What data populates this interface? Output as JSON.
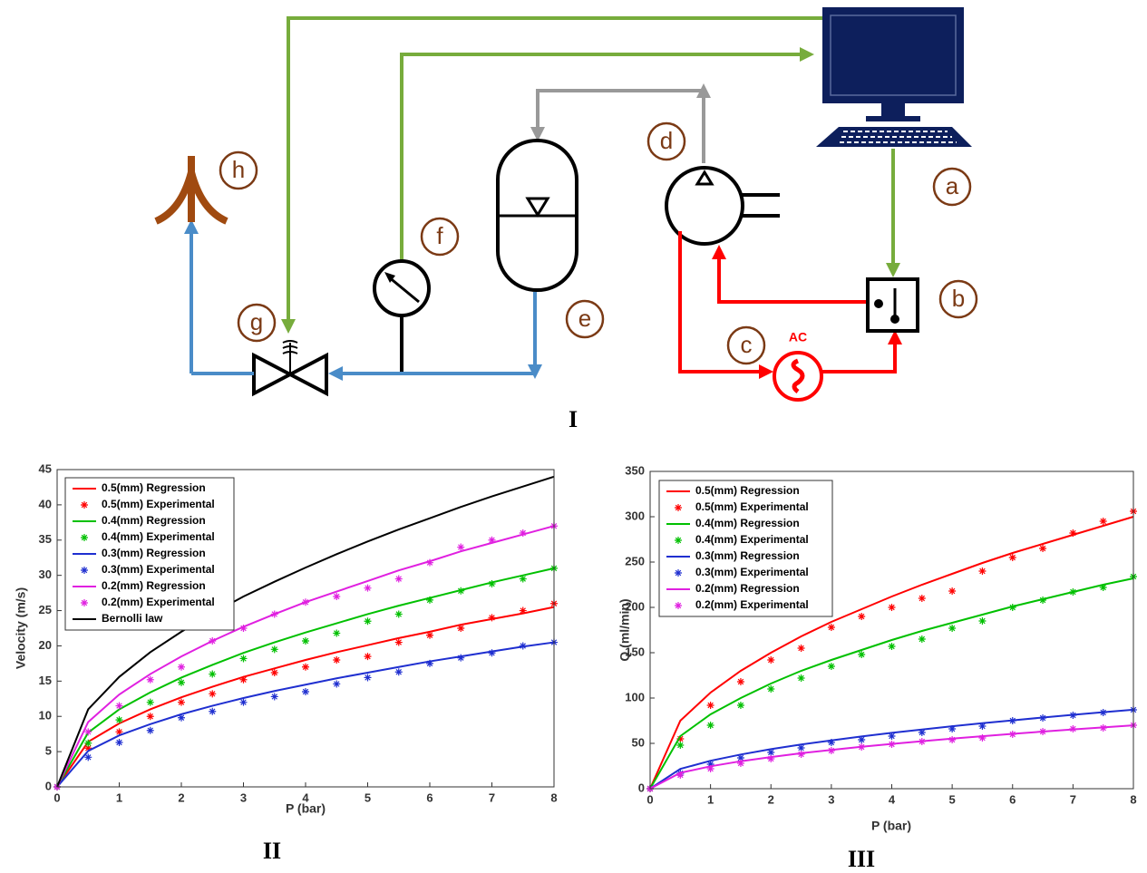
{
  "diagram": {
    "labels": [
      "a",
      "b",
      "c",
      "d",
      "e",
      "f",
      "g",
      "h"
    ],
    "source": "AC",
    "panel": "I"
  },
  "chart_data": [
    {
      "type": "line",
      "panel": "II",
      "x_label": "P (bar)",
      "y_label": "Velocity (m/s)",
      "x": [
        0,
        0.5,
        1,
        1.5,
        2,
        2.5,
        3,
        3.5,
        4,
        4.5,
        5,
        5.5,
        6,
        6.5,
        7,
        7.5,
        8
      ],
      "xlim": [
        0,
        8
      ],
      "ylim": [
        0,
        45
      ],
      "xticks": [
        0,
        1,
        2,
        3,
        4,
        5,
        6,
        7,
        8
      ],
      "yticks": [
        0,
        5,
        10,
        15,
        20,
        25,
        30,
        35,
        40,
        45
      ],
      "legend": "upper left",
      "series": [
        {
          "name": "0.5(mm) Regression",
          "color": "#ff0000",
          "style": "line",
          "values": [
            0,
            6.4,
            9.0,
            11.0,
            12.7,
            14.2,
            15.6,
            16.8,
            18.0,
            19.1,
            20.1,
            21.1,
            22.0,
            23.0,
            23.8,
            24.6,
            25.5
          ]
        },
        {
          "name": "0.5(mm) Experimental",
          "color": "#ff0000",
          "style": "markers",
          "values": [
            0,
            5.5,
            7.8,
            10,
            12,
            13.2,
            15.2,
            16.2,
            17,
            18,
            18.5,
            20.5,
            21.5,
            22.5,
            24,
            25,
            26
          ]
        },
        {
          "name": "0.4(mm) Regression",
          "color": "#00c000",
          "style": "line",
          "values": [
            0,
            7.7,
            11.0,
            13.4,
            15.5,
            17.3,
            19.0,
            20.5,
            21.9,
            23.2,
            24.5,
            25.7,
            26.8,
            27.9,
            29.0,
            30.0,
            31.0
          ]
        },
        {
          "name": "0.4(mm) Experimental",
          "color": "#00c000",
          "style": "markers",
          "values": [
            0,
            6.2,
            9.5,
            12,
            14.8,
            16,
            18.2,
            19.5,
            20.7,
            21.8,
            23.5,
            24.5,
            26.5,
            27.8,
            28.8,
            29.5,
            31
          ]
        },
        {
          "name": "0.3(mm) Regression",
          "color": "#1f2fd0",
          "style": "line",
          "values": [
            0,
            5.1,
            7.3,
            8.9,
            10.3,
            11.5,
            12.6,
            13.6,
            14.5,
            15.4,
            16.2,
            17.0,
            17.8,
            18.5,
            19.2,
            19.9,
            20.5
          ]
        },
        {
          "name": "0.3(mm) Experimental",
          "color": "#1f2fd0",
          "style": "markers",
          "values": [
            0,
            4.2,
            6.3,
            8,
            9.8,
            10.7,
            12,
            12.8,
            13.5,
            14.6,
            15.5,
            16.3,
            17.5,
            18.3,
            19,
            20,
            20.5
          ]
        },
        {
          "name": "0.2(mm) Regression",
          "color": "#e020e0",
          "style": "line",
          "values": [
            0,
            9.2,
            13.1,
            16.0,
            18.5,
            20.7,
            22.7,
            24.5,
            26.2,
            27.7,
            29.2,
            30.7,
            32.0,
            33.4,
            34.6,
            35.8,
            37.0
          ]
        },
        {
          "name": "0.2(mm) Experimental",
          "color": "#e020e0",
          "style": "markers",
          "values": [
            0,
            7.8,
            11.5,
            15.2,
            17,
            20.7,
            22.5,
            24.5,
            26.2,
            27,
            28.2,
            29.5,
            31.8,
            34,
            35,
            36,
            37
          ]
        },
        {
          "name": "Bernolli law",
          "color": "#000000",
          "style": "line",
          "values": [
            0,
            11.0,
            15.6,
            19.1,
            22.0,
            24.6,
            27.0,
            29.1,
            31.1,
            33.0,
            34.8,
            36.5,
            38.1,
            39.7,
            41.2,
            42.6,
            44.0
          ]
        }
      ]
    },
    {
      "type": "line",
      "panel": "III",
      "x_label": "P (bar)",
      "y_label": "Q (ml/min)",
      "x": [
        0,
        0.5,
        1,
        1.5,
        2,
        2.5,
        3,
        3.5,
        4,
        4.5,
        5,
        5.5,
        6,
        6.5,
        7,
        7.5,
        8
      ],
      "xlim": [
        0,
        8
      ],
      "ylim": [
        0,
        350
      ],
      "xticks": [
        0,
        1,
        2,
        3,
        4,
        5,
        6,
        7,
        8
      ],
      "yticks": [
        0,
        50,
        100,
        150,
        200,
        250,
        300,
        350
      ],
      "legend": "upper left",
      "series": [
        {
          "name": "0.5(mm) Regression",
          "color": "#ff0000",
          "style": "line",
          "values": [
            0,
            75,
            106,
            130,
            150,
            168,
            184,
            198,
            212,
            225,
            237,
            249,
            260,
            270,
            280,
            290,
            300
          ]
        },
        {
          "name": "0.5(mm) Experimental",
          "color": "#ff0000",
          "style": "markers",
          "values": [
            0,
            55,
            92,
            118,
            142,
            155,
            178,
            190,
            200,
            210,
            218,
            240,
            255,
            265,
            282,
            295,
            306
          ]
        },
        {
          "name": "0.4(mm) Regression",
          "color": "#00c000",
          "style": "line",
          "values": [
            0,
            58,
            82,
            100,
            116,
            130,
            142,
            153,
            164,
            174,
            183,
            192,
            201,
            209,
            217,
            225,
            232
          ]
        },
        {
          "name": "0.4(mm) Experimental",
          "color": "#00c000",
          "style": "markers",
          "values": [
            0,
            48,
            70,
            92,
            110,
            122,
            135,
            148,
            157,
            165,
            177,
            185,
            200,
            208,
            217,
            222,
            234
          ]
        },
        {
          "name": "0.3(mm) Regression",
          "color": "#1f2fd0",
          "style": "line",
          "values": [
            0,
            21.8,
            30.8,
            37.7,
            43.6,
            48.7,
            53.3,
            57.6,
            61.6,
            65.3,
            68.9,
            72.2,
            75.4,
            78.5,
            81.5,
            84.4,
            87.1
          ]
        },
        {
          "name": "0.3(mm) Experimental",
          "color": "#1f2fd0",
          "style": "markers",
          "values": [
            0,
            17,
            27,
            34,
            40,
            45,
            51,
            54,
            58,
            62,
            66,
            69,
            75,
            78,
            81,
            84,
            87
          ]
        },
        {
          "name": "0.2(mm) Regression",
          "color": "#e020e0",
          "style": "line",
          "values": [
            0,
            17.5,
            24.7,
            30.3,
            34.9,
            39.1,
            42.8,
            46.2,
            49.4,
            52.4,
            55.2,
            57.9,
            60.5,
            63,
            65.4,
            67.6,
            69.9
          ]
        },
        {
          "name": "0.2(mm) Experimental",
          "color": "#e020e0",
          "style": "markers",
          "values": [
            0,
            15,
            22,
            28,
            33,
            38,
            42,
            46,
            49,
            52,
            54,
            56,
            60,
            63,
            66,
            67,
            70
          ]
        }
      ]
    }
  ]
}
